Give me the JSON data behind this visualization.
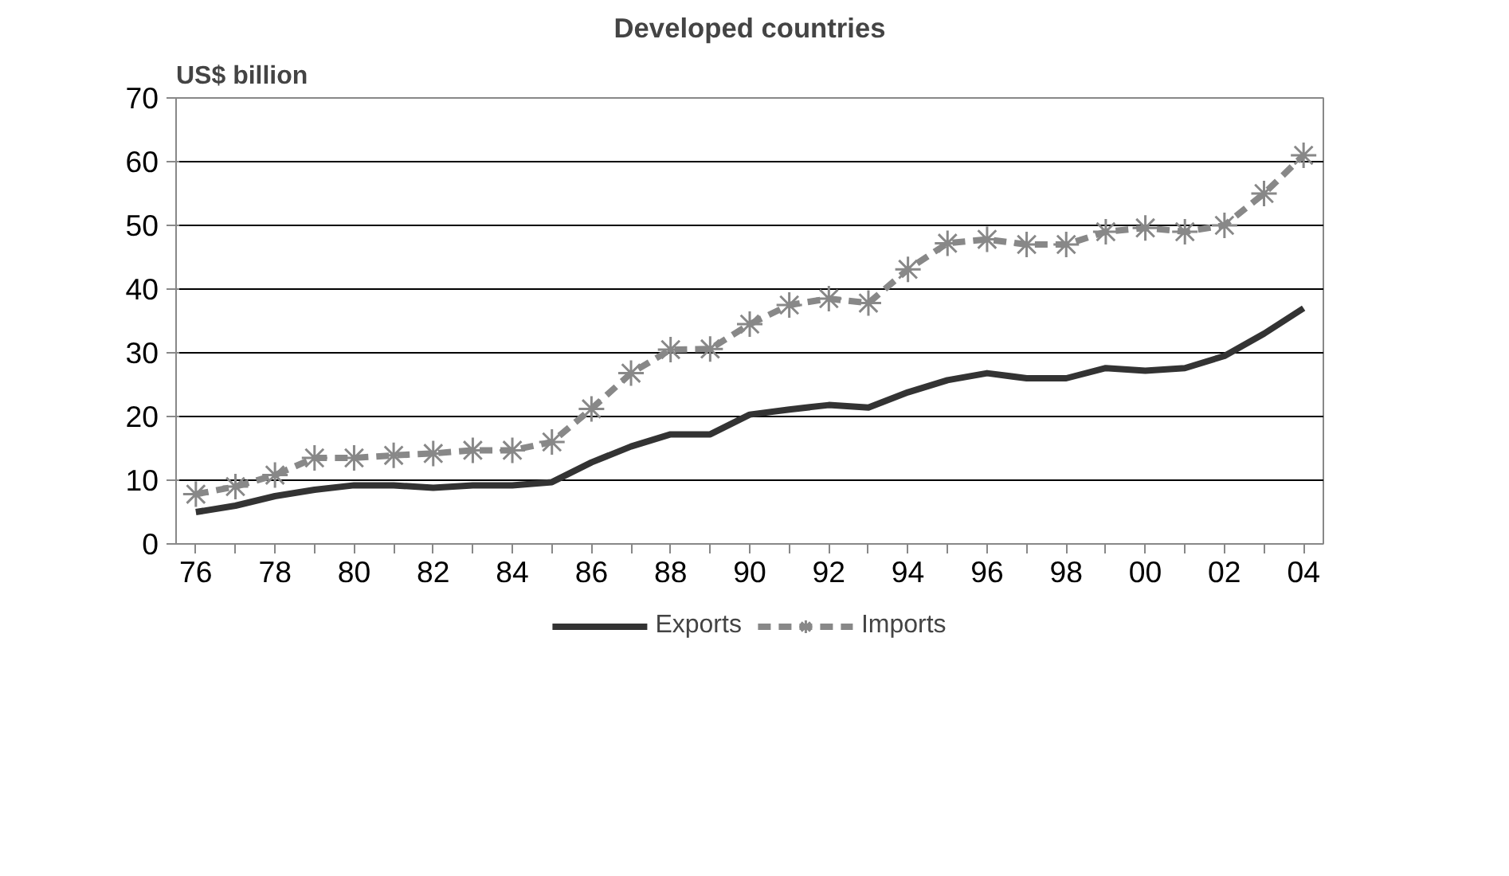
{
  "chart_data": {
    "type": "line",
    "title": "Developed countries",
    "ylabel": "US$ billion",
    "categories": [
      "76",
      null,
      "78",
      null,
      "80",
      null,
      "82",
      null,
      "84",
      null,
      "86",
      null,
      "88",
      null,
      "90",
      null,
      "92",
      null,
      "94",
      null,
      "96",
      null,
      "98",
      null,
      "00",
      null,
      "02",
      null,
      "04"
    ],
    "series": [
      {
        "name": "Exports",
        "color": "#333333",
        "line_style": "solid",
        "marker": "none",
        "values": [
          5,
          6,
          7.5,
          8.5,
          9.2,
          9.2,
          8.8,
          9.2,
          9.2,
          9.7,
          12.8,
          15.3,
          17.2,
          17.2,
          20.3,
          21.1,
          21.8,
          21.4,
          23.8,
          25.7,
          26.8,
          26,
          26,
          27.6,
          27.2,
          27.6,
          29.5,
          33,
          37
        ]
      },
      {
        "name": "Imports",
        "color": "#888888",
        "line_style": "dashed",
        "marker": "cross",
        "values": [
          7.8,
          9,
          10.8,
          13.5,
          13.5,
          13.9,
          14.2,
          14.7,
          14.7,
          16,
          21.2,
          26.8,
          30.5,
          30.6,
          34.5,
          37.5,
          38.5,
          37.8,
          43.1,
          47.2,
          47.8,
          47,
          47,
          49,
          49.6,
          49,
          50,
          55,
          61
        ]
      }
    ],
    "ylim": [
      0,
      70
    ],
    "yticks": [
      0,
      10,
      20,
      30,
      40,
      50,
      60,
      70
    ],
    "grid": "y",
    "legend": "bottom"
  }
}
